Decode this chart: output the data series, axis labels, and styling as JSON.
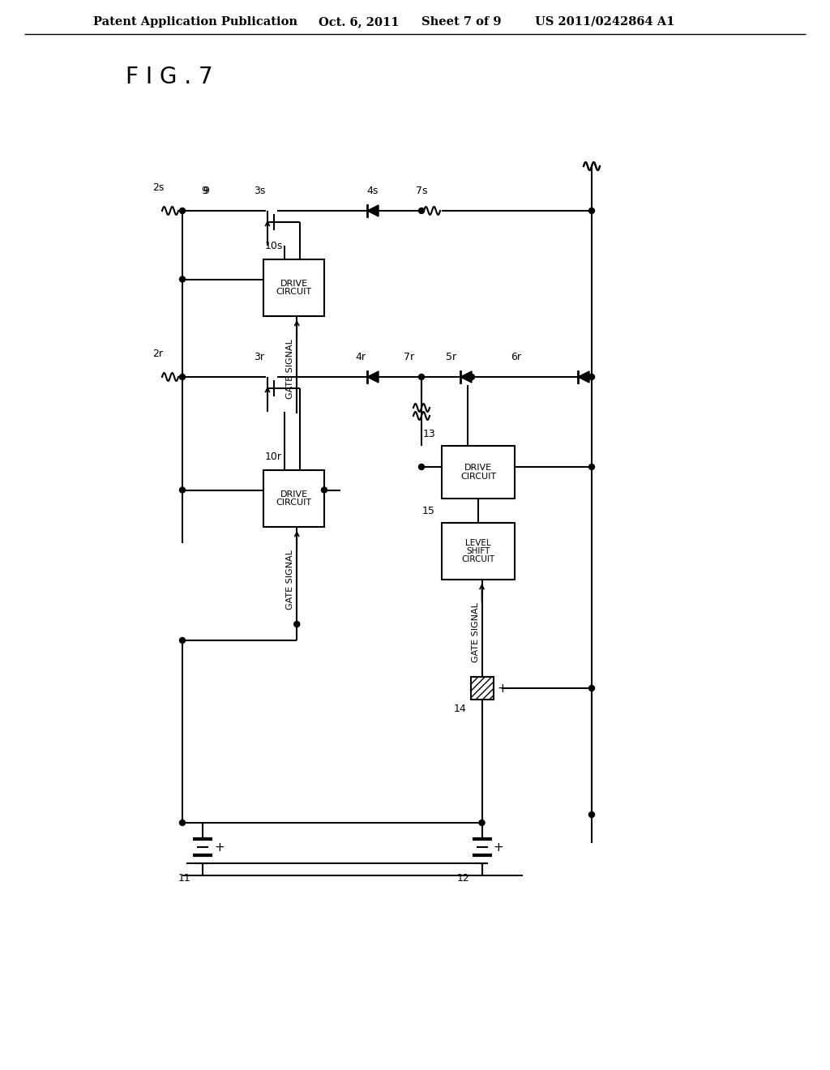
{
  "header_left": "Patent Application Publication",
  "header_mid": "Oct. 6, 2011   Sheet 7 of 9",
  "header_right": "US 2011/0242864 A1",
  "fig_label": "F I G . 7",
  "bg_color": "#ffffff",
  "line_color": "#000000",
  "text_color": "#000000"
}
